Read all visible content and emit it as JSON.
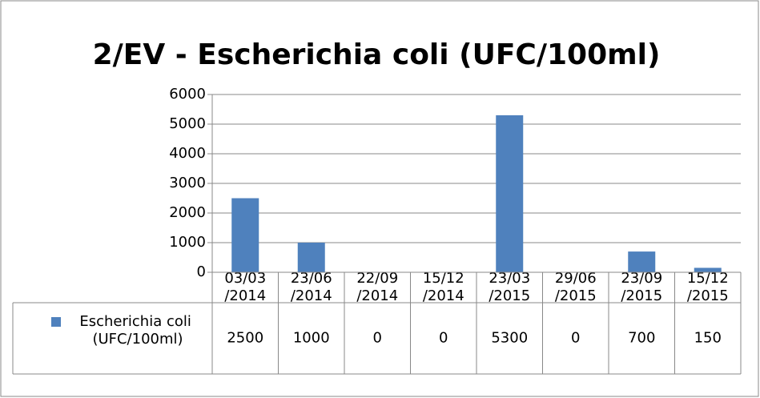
{
  "chart_data": {
    "type": "bar",
    "title": "2/EV - Escherichia coli (UFC/100ml)",
    "categories": [
      "03/03/2014",
      "23/06/2014",
      "22/09/2014",
      "15/12/2014",
      "23/03/2015",
      "29/06/2015",
      "23/09/2015",
      "15/12/2015"
    ],
    "series": [
      {
        "name": "Escherichia coli (UFC/100ml)",
        "color": "#4f81bd",
        "values": [
          2500,
          1000,
          0,
          0,
          5300,
          0,
          700,
          150
        ]
      }
    ],
    "ylim": [
      0,
      6000
    ],
    "yticks": [
      0,
      1000,
      2000,
      3000,
      4000,
      5000,
      6000
    ],
    "grid": true,
    "data_table": true
  }
}
